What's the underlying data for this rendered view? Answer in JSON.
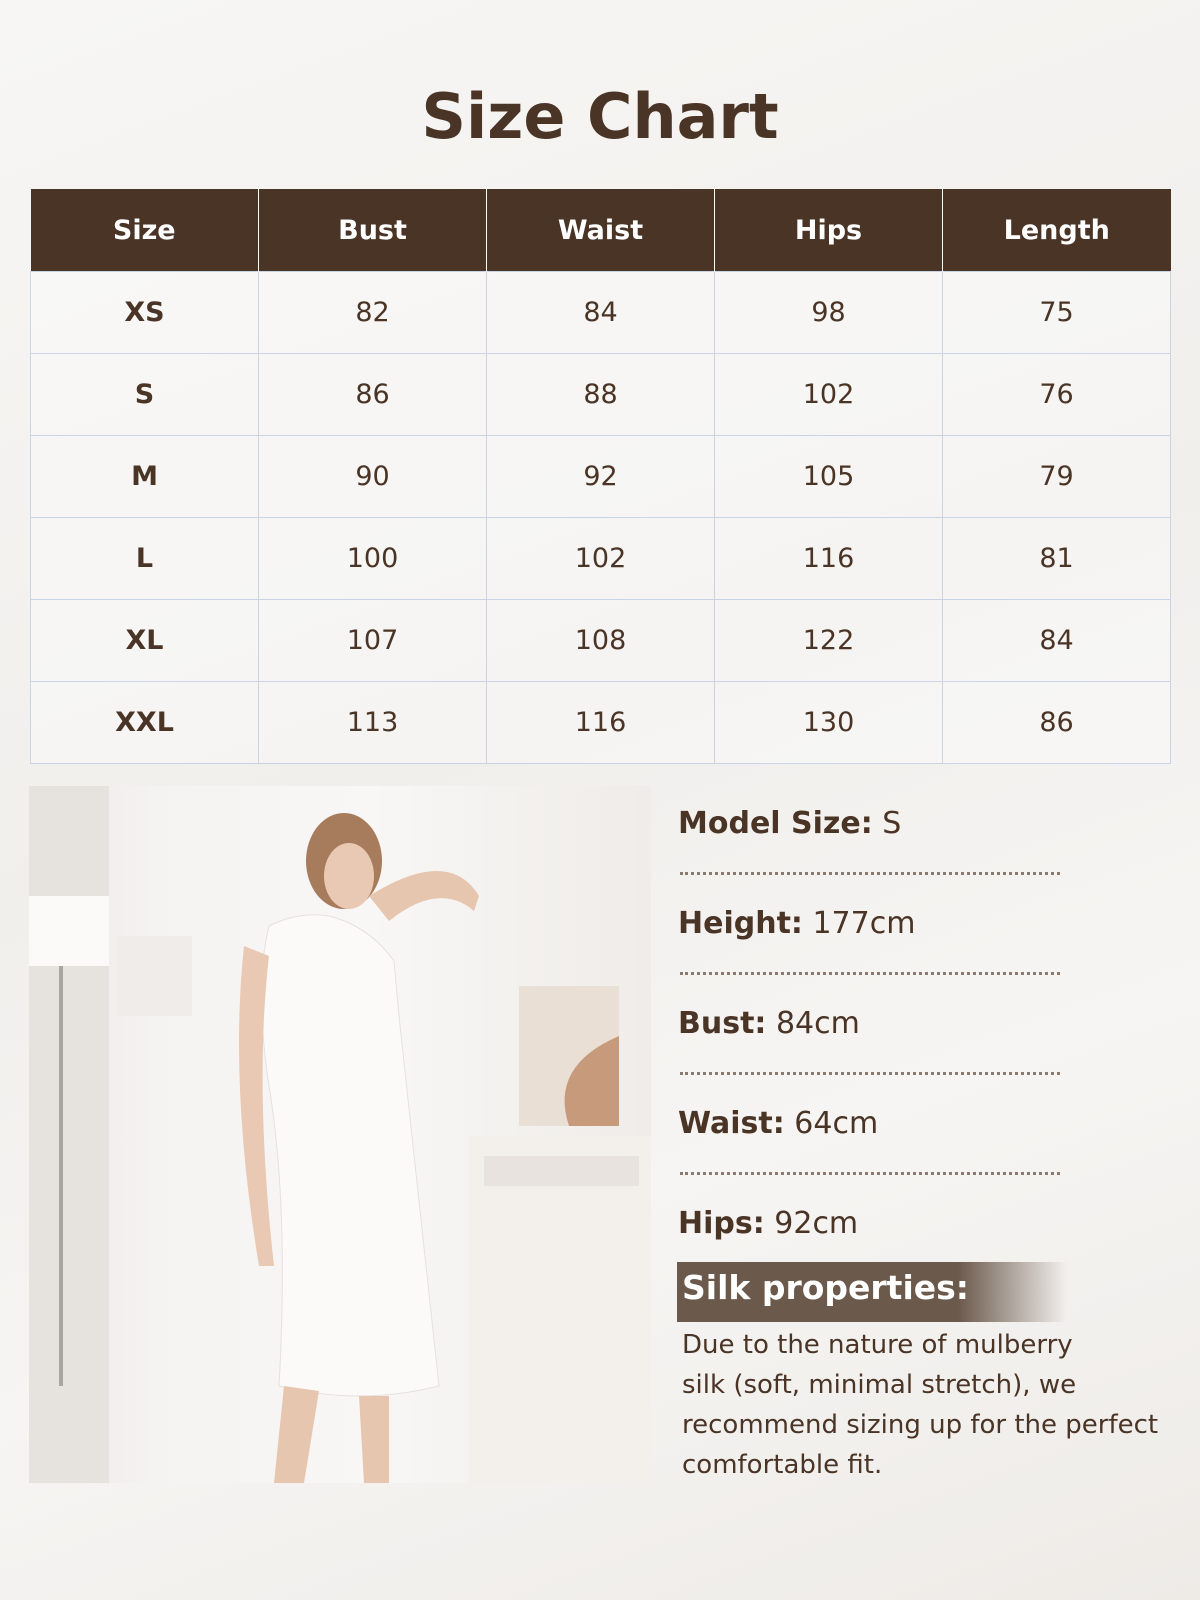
{
  "title": "Size Chart",
  "table": {
    "headers": [
      "Size",
      "Bust",
      "Waist",
      "Hips",
      "Length"
    ],
    "rows": [
      [
        "XS",
        "82",
        "84",
        "98",
        "75"
      ],
      [
        "S",
        "86",
        "88",
        "102",
        "76"
      ],
      [
        "M",
        "90",
        "92",
        "105",
        "79"
      ],
      [
        "L",
        "100",
        "102",
        "116",
        "81"
      ],
      [
        "XL",
        "107",
        "108",
        "122",
        "84"
      ],
      [
        "XXL",
        "113",
        "116",
        "130",
        "86"
      ]
    ]
  },
  "model": [
    {
      "label": "Model Size:",
      "value": "S"
    },
    {
      "label": "Height:",
      "value": "177cm"
    },
    {
      "label": "Bust:",
      "value": "84cm"
    },
    {
      "label": "Waist:",
      "value": "64cm"
    },
    {
      "label": "Hips:",
      "value": "92cm"
    }
  ],
  "silk": {
    "title": "Silk properties:",
    "lines": [
      "Due to the nature of mulberry",
      "silk (soft, minimal stretch), we",
      "recommend sizing up for the perfect",
      "comfortable fit."
    ]
  },
  "colors": {
    "brand": "#4a3426",
    "bar": "#6b594c",
    "grid": "#c9d4e4"
  }
}
